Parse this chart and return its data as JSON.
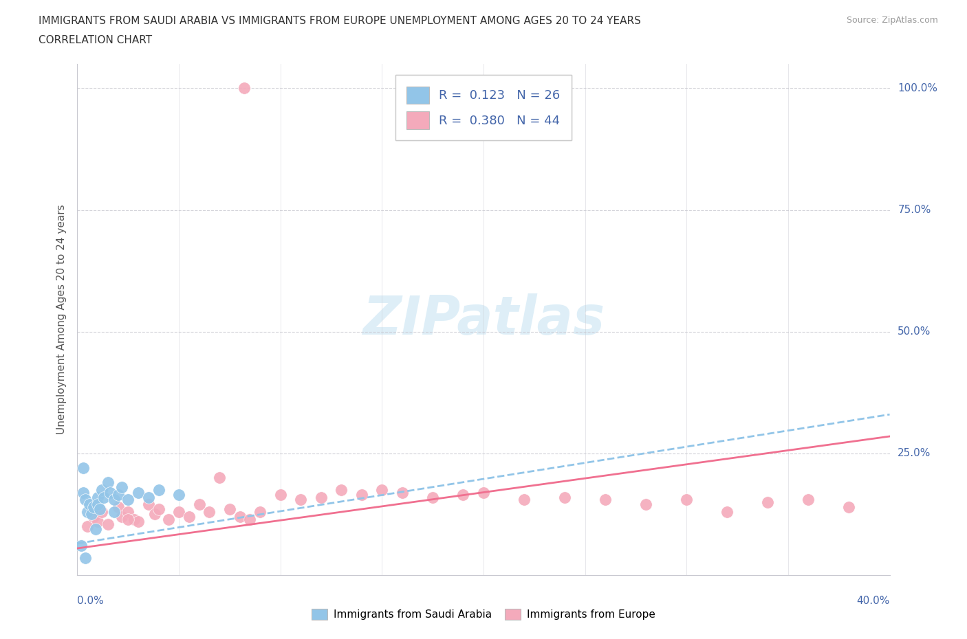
{
  "title_line1": "IMMIGRANTS FROM SAUDI ARABIA VS IMMIGRANTS FROM EUROPE UNEMPLOYMENT AMONG AGES 20 TO 24 YEARS",
  "title_line2": "CORRELATION CHART",
  "source": "Source: ZipAtlas.com",
  "ylabel": "Unemployment Among Ages 20 to 24 years",
  "legend_r1": "R =  0.123   N = 26",
  "legend_r2": "R =  0.380   N = 44",
  "legend_label1": "Immigrants from Saudi Arabia",
  "legend_label2": "Immigrants from Europe",
  "blue_color": "#92C5E8",
  "pink_color": "#F4AABB",
  "blue_line_color": "#92C5E8",
  "pink_line_color": "#F07090",
  "background_color": "#FFFFFF",
  "grid_color": "#C8C8D0",
  "text_color": "#4466AA",
  "title_color": "#333333",
  "saudi_x": [
    0.002,
    0.003,
    0.004,
    0.005,
    0.006,
    0.007,
    0.008,
    0.009,
    0.01,
    0.01,
    0.011,
    0.012,
    0.013,
    0.015,
    0.016,
    0.018,
    0.018,
    0.02,
    0.022,
    0.025,
    0.03,
    0.035,
    0.04,
    0.05,
    0.003,
    0.004
  ],
  "saudi_y": [
    0.06,
    0.17,
    0.155,
    0.13,
    0.145,
    0.125,
    0.14,
    0.095,
    0.16,
    0.145,
    0.135,
    0.175,
    0.16,
    0.19,
    0.17,
    0.155,
    0.13,
    0.165,
    0.18,
    0.155,
    0.17,
    0.16,
    0.175,
    0.165,
    0.22,
    0.035
  ],
  "europe_x": [
    0.005,
    0.008,
    0.01,
    0.012,
    0.015,
    0.02,
    0.022,
    0.025,
    0.028,
    0.03,
    0.035,
    0.038,
    0.04,
    0.045,
    0.05,
    0.055,
    0.06,
    0.065,
    0.07,
    0.075,
    0.08,
    0.085,
    0.09,
    0.1,
    0.11,
    0.12,
    0.13,
    0.14,
    0.15,
    0.16,
    0.175,
    0.19,
    0.2,
    0.22,
    0.24,
    0.26,
    0.28,
    0.3,
    0.32,
    0.34,
    0.36,
    0.38,
    0.025,
    0.082
  ],
  "europe_y": [
    0.1,
    0.12,
    0.11,
    0.13,
    0.105,
    0.14,
    0.12,
    0.13,
    0.115,
    0.11,
    0.145,
    0.125,
    0.135,
    0.115,
    0.13,
    0.12,
    0.145,
    0.13,
    0.2,
    0.135,
    0.12,
    0.115,
    0.13,
    0.165,
    0.155,
    0.16,
    0.175,
    0.165,
    0.175,
    0.17,
    0.16,
    0.165,
    0.17,
    0.155,
    0.16,
    0.155,
    0.145,
    0.155,
    0.13,
    0.15,
    0.155,
    0.14,
    0.115,
    1.0
  ],
  "xlim": [
    0,
    0.4
  ],
  "ylim": [
    0,
    1.05
  ],
  "yticks": [
    0.25,
    0.5,
    0.75,
    1.0
  ],
  "ytick_labels": [
    "25.0%",
    "50.0%",
    "75.0%",
    "100.0%"
  ],
  "xtick_left_label": "0.0%",
  "xtick_right_label": "40.0%",
  "saudi_trend_x0": 0.0,
  "saudi_trend_y0": 0.065,
  "saudi_trend_x1": 0.4,
  "saudi_trend_y1": 0.33,
  "europe_trend_x0": 0.0,
  "europe_trend_y0": 0.055,
  "europe_trend_x1": 0.4,
  "europe_trend_y1": 0.285,
  "watermark": "ZIPatlas",
  "watermark_color": "#D0E8F5"
}
